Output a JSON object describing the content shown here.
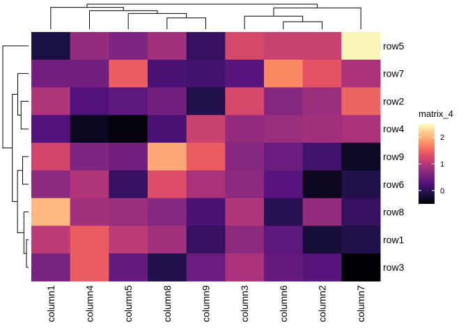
{
  "chart_data": {
    "type": "heatmap",
    "title": "",
    "rows": [
      "row5",
      "row7",
      "row2",
      "row4",
      "row9",
      "row6",
      "row8",
      "row1",
      "row3"
    ],
    "columns": [
      "column1",
      "column4",
      "column5",
      "column8",
      "column9",
      "column3",
      "column6",
      "column2",
      "column7"
    ],
    "values": [
      [
        -0.15,
        0.75,
        0.6,
        0.85,
        0.05,
        1.25,
        1.15,
        1.15,
        2.45
      ],
      [
        0.5,
        0.5,
        1.45,
        0.2,
        0.15,
        0.3,
        1.75,
        1.35,
        0.9
      ],
      [
        0.95,
        0.25,
        0.35,
        0.5,
        -0.1,
        1.25,
        0.65,
        0.8,
        1.5
      ],
      [
        0.25,
        -0.35,
        -0.45,
        0.2,
        1.15,
        0.75,
        0.8,
        0.85,
        0.9
      ],
      [
        1.2,
        0.6,
        0.5,
        1.95,
        1.45,
        0.65,
        0.45,
        0.15,
        -0.3
      ],
      [
        0.7,
        0.95,
        0.05,
        1.3,
        0.9,
        0.7,
        0.3,
        -0.35,
        -0.1
      ],
      [
        2.05,
        0.85,
        0.8,
        0.65,
        0.2,
        0.95,
        -0.05,
        0.75,
        0.05
      ],
      [
        1.05,
        1.45,
        1.05,
        0.85,
        0.05,
        0.7,
        0.35,
        -0.2,
        -0.1
      ],
      [
        0.55,
        1.45,
        0.4,
        -0.1,
        0.45,
        0.9,
        0.4,
        0.3,
        -0.55
      ]
    ],
    "legend": {
      "title": "matrix_4",
      "ticks": [
        0,
        1,
        2
      ],
      "range": [
        -0.5,
        2.5
      ]
    },
    "colormap": [
      "#000004",
      "#1d1147",
      "#51127c",
      "#822681",
      "#b73779",
      "#e75263",
      "#fc8961",
      "#fec488",
      "#fcfdbf"
    ],
    "row_dendrogram": {
      "order": [
        "row5",
        "row7",
        "row2",
        "row4",
        "row9",
        "row6",
        "row8",
        "row1",
        "row3"
      ],
      "merges": [
        [
          [
            "row1"
          ],
          [
            "row3"
          ],
          0.08
        ],
        [
          [
            "row8"
          ],
          [
            "row1",
            "row3"
          ],
          0.18
        ],
        [
          [
            "row9"
          ],
          [
            "row6"
          ],
          0.23
        ],
        [
          [
            "row9",
            "row6"
          ],
          [
            "row8",
            "row1",
            "row3"
          ],
          0.43
        ],
        [
          [
            "row2"
          ],
          [
            "row4"
          ],
          0.29
        ],
        [
          [
            "row7"
          ],
          [
            "row2",
            "row4"
          ],
          0.42
        ],
        [
          [
            "row7",
            "row2",
            "row4"
          ],
          [
            "row9",
            "row6",
            "row8",
            "row1",
            "row3"
          ],
          0.63
        ],
        [
          [
            "row5"
          ],
          [
            "row7",
            "row2",
            "row4",
            "row9",
            "row6",
            "row8",
            "row1",
            "row3"
          ],
          1.0
        ]
      ]
    },
    "column_dendrogram": {
      "order": [
        "column1",
        "column4",
        "column5",
        "column8",
        "column9",
        "column3",
        "column6",
        "column2",
        "column7"
      ],
      "merges": [
        [
          [
            "column6"
          ],
          [
            "column2"
          ],
          0.3
        ],
        [
          [
            "column3"
          ],
          [
            "column6",
            "column2"
          ],
          0.52
        ],
        [
          [
            "column3",
            "column6",
            "column2"
          ],
          [
            "column7"
          ],
          0.85
        ],
        [
          [
            "column8"
          ],
          [
            "column9"
          ],
          0.45
        ],
        [
          [
            "column5"
          ],
          [
            "column8",
            "column9"
          ],
          0.63
        ],
        [
          [
            "column4"
          ],
          [
            "column5",
            "column8",
            "column9"
          ],
          0.74
        ],
        [
          [
            "column1"
          ],
          [
            "column4",
            "column5",
            "column8",
            "column9"
          ],
          0.87
        ],
        [
          [
            "column1",
            "column4",
            "column5",
            "column8",
            "column9"
          ],
          [
            "column3",
            "column6",
            "column2",
            "column7"
          ],
          1.0
        ]
      ]
    }
  }
}
